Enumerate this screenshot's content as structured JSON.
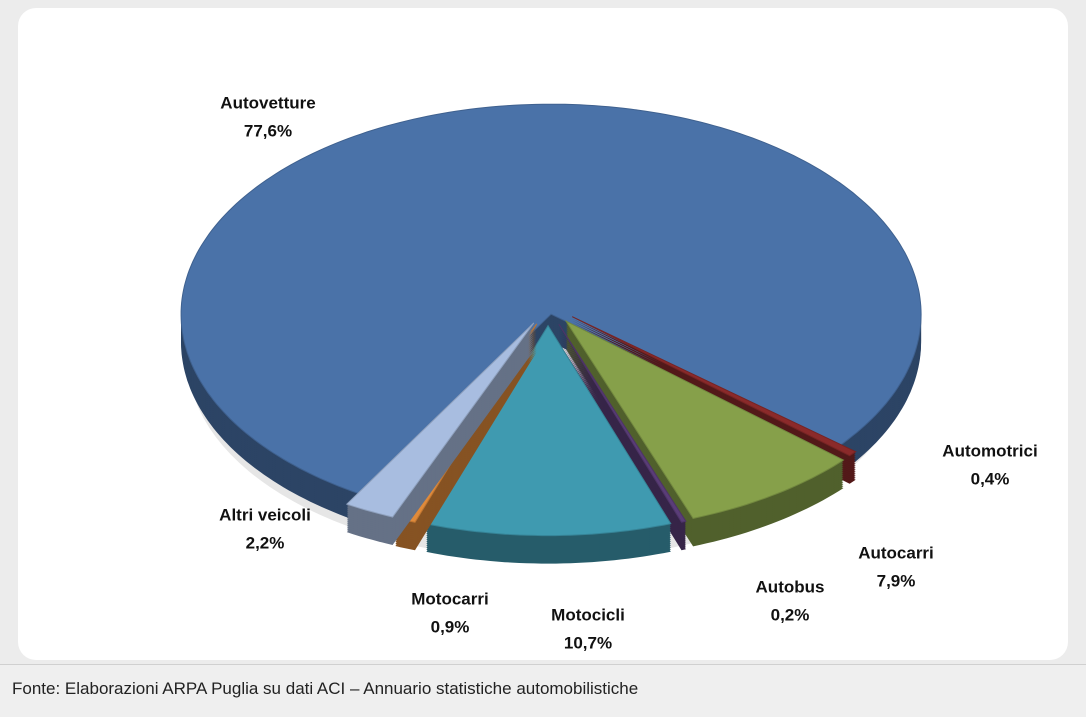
{
  "chart_data": {
    "type": "pie",
    "categories": [
      "Autovetture",
      "Automotrici",
      "Autocarri",
      "Autobus",
      "Motocicli",
      "Motocarri",
      "Altri veicoli"
    ],
    "values": [
      77.6,
      0.4,
      7.9,
      0.2,
      10.7,
      0.9,
      2.2
    ],
    "value_labels": [
      "77,6%",
      "0,4%",
      "7,9%",
      "0,2%",
      "10,7%",
      "0,9%",
      "2,2%"
    ],
    "colors": [
      "#4a72a8",
      "#8b2a2a",
      "#86a04a",
      "#5a3d78",
      "#3f9ab0",
      "#e08a3a",
      "#a8bde0"
    ],
    "source": "Fonte: Elaborazioni ARPA Puglia su dati  ACI –  Annuario statistiche automobilistiche"
  }
}
